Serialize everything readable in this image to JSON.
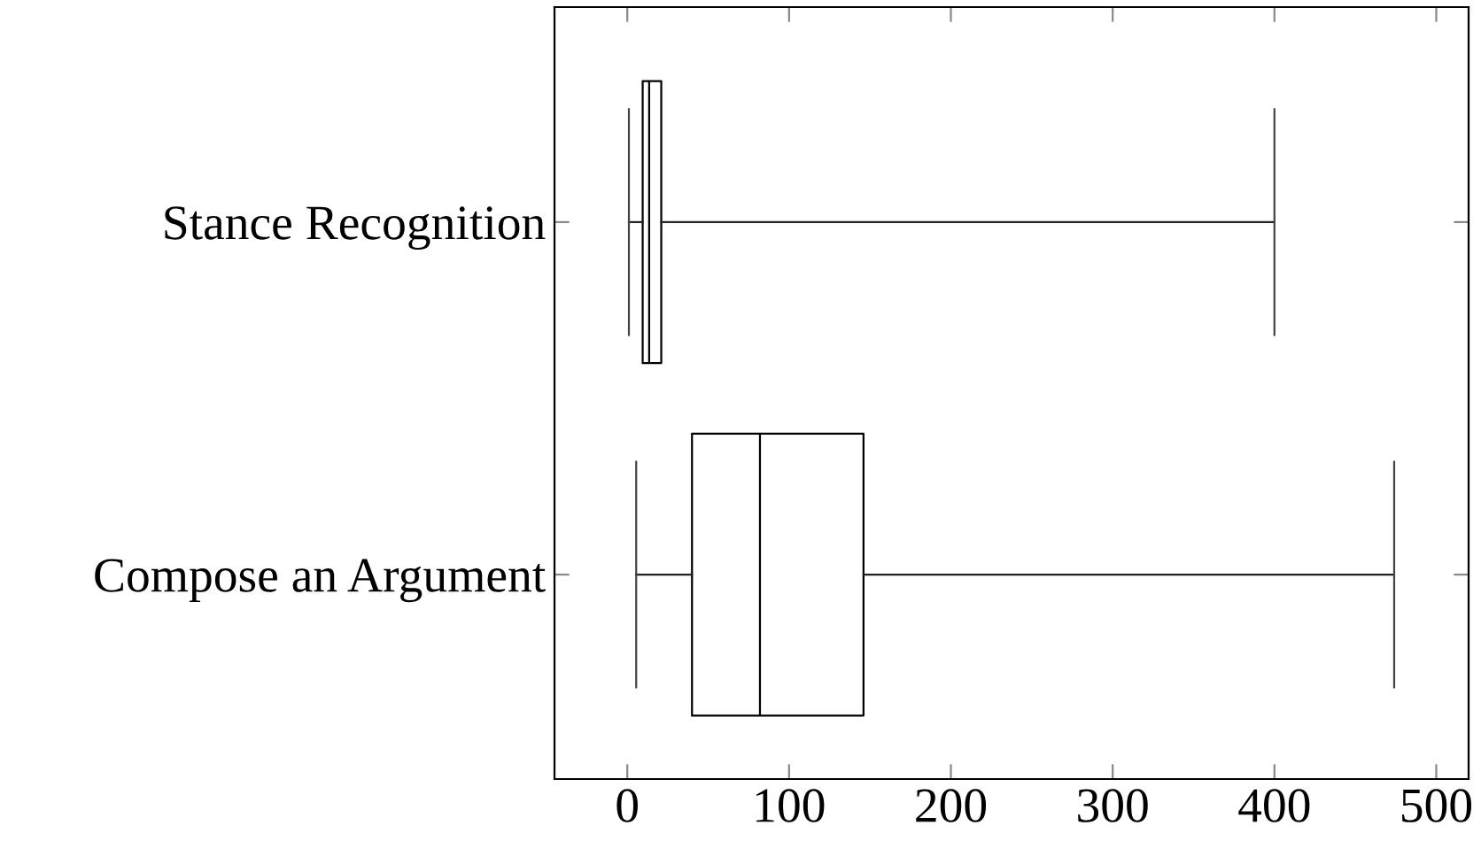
{
  "chart_data": {
    "type": "box",
    "orientation": "horizontal",
    "categories": [
      "Stance Recognition",
      "Compose an Argument"
    ],
    "boxes": [
      {
        "low": 1,
        "q1": 9.5,
        "median": 13.5,
        "q3": 21,
        "high": 400
      },
      {
        "low": 5.5,
        "q1": 40,
        "median": 82,
        "q3": 146,
        "high": 474
      }
    ],
    "xlim": [
      -45,
      520
    ],
    "xticks": [
      0,
      100,
      200,
      300,
      400,
      500
    ],
    "grid": false,
    "legend": false
  }
}
